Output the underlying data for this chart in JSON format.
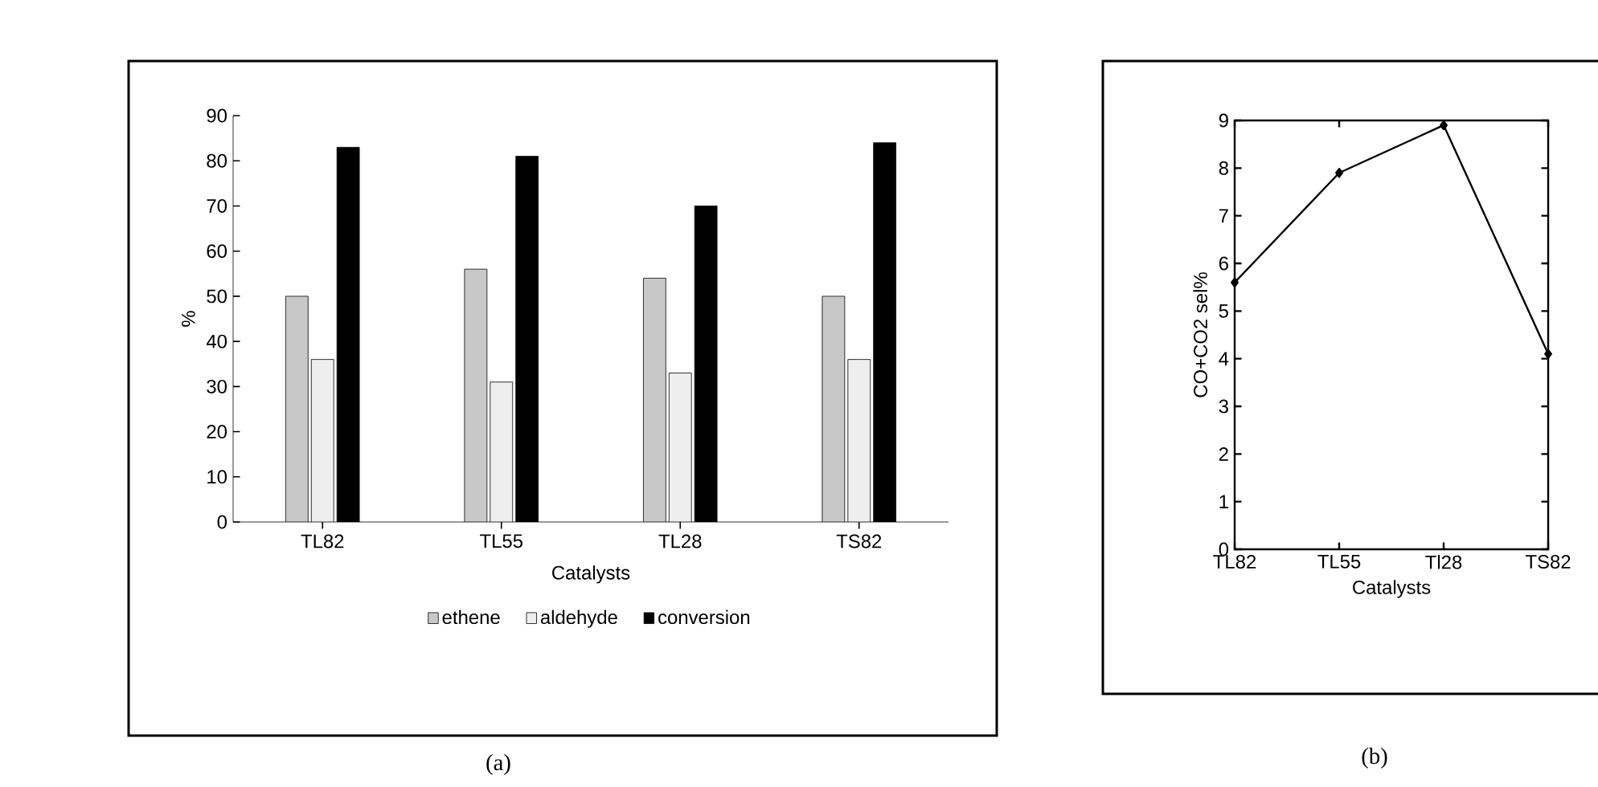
{
  "chart_data": [
    {
      "type": "bar",
      "categories": [
        "TL82",
        "TL55",
        "TL28",
        "TS82"
      ],
      "series": [
        {
          "name": "ethene",
          "color": "#c8c8c8",
          "values": [
            50,
            56,
            54,
            50
          ]
        },
        {
          "name": "aldehyde",
          "color": "#eeeeee",
          "values": [
            36,
            31,
            33,
            36
          ]
        },
        {
          "name": "conversion",
          "color": "#000000",
          "values": [
            83,
            81,
            70,
            84
          ]
        }
      ],
      "xlabel": "Catalysts",
      "ylabel": "%",
      "ylim": [
        0,
        90
      ],
      "yticks": [
        0,
        10,
        20,
        30,
        40,
        50,
        60,
        70,
        80,
        90
      ],
      "legend": "bottom",
      "annotations": [
        "(a)"
      ]
    },
    {
      "type": "line",
      "categories": [
        "TL82",
        "TL55",
        "Tl28",
        "TS82"
      ],
      "values": [
        5.6,
        7.9,
        8.9,
        4.1
      ],
      "color": "#000000",
      "marker": "diamond",
      "xlabel": "Catalysts",
      "ylabel": "CO+CO2 sel%",
      "ylim": [
        0,
        9
      ],
      "yticks": [
        0,
        1,
        2,
        3,
        4,
        5,
        6,
        7,
        8,
        9
      ],
      "annotations": [
        "(b)"
      ]
    }
  ]
}
